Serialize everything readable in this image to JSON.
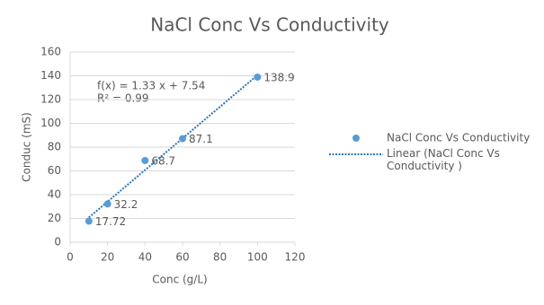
{
  "chart_data": {
    "type": "scatter",
    "title": "NaCl Conc Vs Conductivity",
    "x_label": "Conc (g/L)",
    "y_label": "Conduc (mS)",
    "series": [
      {
        "name": "NaCl Conc Vs Conductivity",
        "color": "#5b9bd5",
        "x": [
          10,
          20,
          40,
          60,
          100
        ],
        "values": [
          17.72,
          32.2,
          68.7,
          87.1,
          138.9
        ]
      }
    ],
    "trendline": {
      "name": "Linear (NaCl Conc Vs Conductivity )",
      "slope": 1.33,
      "intercept": 7.54,
      "color": "#2e75b6"
    },
    "annotations": [
      "f(x) = 1.33 x + 7.54",
      "R² = 0.99"
    ],
    "xlim": [
      0,
      120
    ],
    "xticks": [
      0,
      20,
      40,
      60,
      80,
      100,
      120
    ],
    "ylim": [
      0,
      160
    ],
    "yticks": [
      0,
      20,
      40,
      60,
      80,
      100,
      120,
      140,
      160
    ],
    "grid": true
  }
}
